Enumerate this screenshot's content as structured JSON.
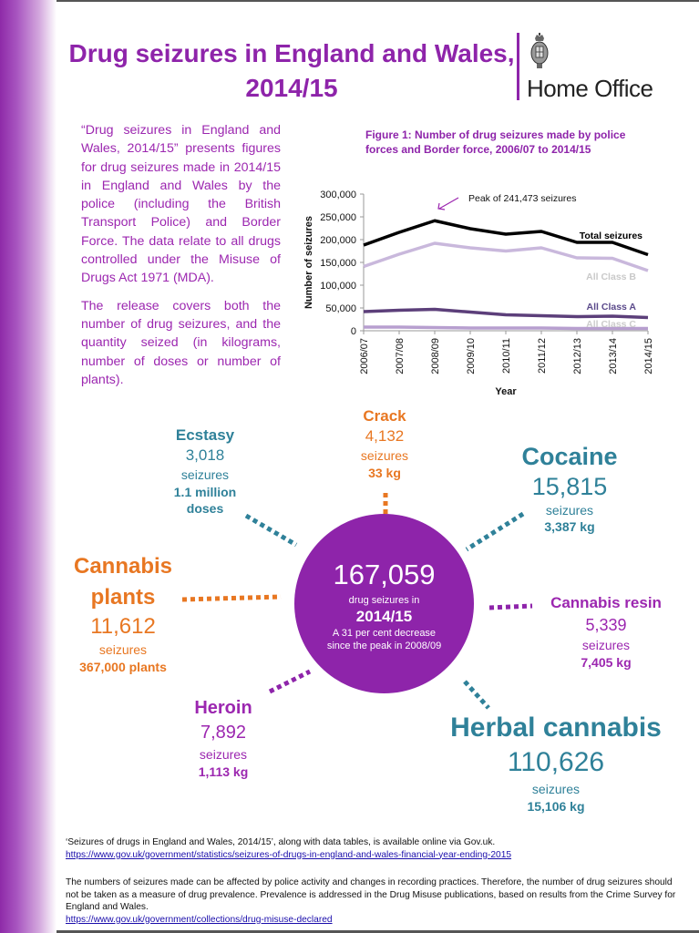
{
  "header": {
    "title_line1": "Drug seizures in England and Wales,",
    "title_line2": "2014/15",
    "logo_text": "Home Office",
    "logo_icon": "royal-crest-icon"
  },
  "intro": {
    "paragraph1": "“Drug seizures in England and Wales, 2014/15” presents figures for drug seizures made in 2014/15 in England and Wales by the police (including the British Transport Police) and Border Force. The data relate to all drugs controlled under the Misuse of Drugs Act 1971 (MDA).",
    "paragraph2": "The release covers both the number of drug seizures, and the quantity seized (in kilograms, number of doses or number of plants)."
  },
  "figure": {
    "title_line1": "Figure 1: Number of drug seizures made by police",
    "title_line2": "forces and Border force, 2006/07 to 2014/15",
    "annotation": "Peak of 241,473 seizures"
  },
  "chart_data": {
    "type": "line",
    "title": "Figure 1: Number of drug seizures made by police forces and Border force, 2006/07 to 2014/15",
    "xlabel": "Year",
    "ylabel": "Number of seizures",
    "ylim": [
      0,
      300000
    ],
    "yticks": [
      0,
      50000,
      100000,
      150000,
      200000,
      250000,
      300000
    ],
    "ytick_labels": [
      "0",
      "50,000",
      "100,000",
      "150,000",
      "200,000",
      "250,000",
      "300,000"
    ],
    "categories": [
      "2006/07",
      "2007/08",
      "2008/09",
      "2009/10",
      "2010/11",
      "2011/12",
      "2012/13",
      "2013/14",
      "2014/15"
    ],
    "series": [
      {
        "name": "Total seizures",
        "color": "#000000",
        "values": [
          188000,
          216000,
          241473,
          224000,
          212000,
          218000,
          194000,
          194000,
          167059
        ]
      },
      {
        "name": "All Class B",
        "color": "#c9b8dc",
        "values": [
          141000,
          168000,
          192000,
          182000,
          175000,
          182000,
          160000,
          159000,
          132000
        ]
      },
      {
        "name": "All Class A",
        "color": "#5c3f7a",
        "values": [
          42000,
          45000,
          47000,
          41000,
          35000,
          33000,
          31000,
          32000,
          29000
        ]
      },
      {
        "name": "All Class C",
        "color": "#b79fcf",
        "values": [
          8000,
          8000,
          7000,
          6000,
          6000,
          6000,
          5000,
          5000,
          5000
        ]
      }
    ],
    "annotations": [
      {
        "text": "Peak of 241,473 seizures",
        "x": "2008/09",
        "y": 241473
      }
    ],
    "grid": false,
    "legend_position": "inline-right"
  },
  "centre": {
    "number": "167,059",
    "label": "drug seizures in",
    "year": "2014/15",
    "note_line1": "A 31 per cent decrease",
    "note_line2": "since the peak in 2008/09"
  },
  "drugs": {
    "ecstasy": {
      "name": "Ecstasy",
      "seizures": "3,018",
      "label": "seizures",
      "qty_line1": "1.1 million",
      "qty_line2": "doses"
    },
    "crack": {
      "name": "Crack",
      "seizures": "4,132",
      "label": "seizures",
      "qty": "33 kg"
    },
    "cocaine": {
      "name": "Cocaine",
      "seizures": "15,815",
      "label": "seizures",
      "qty": "3,387 kg"
    },
    "cannabis_plants": {
      "name_line1": "Cannabis",
      "name_line2": "plants",
      "seizures": "11,612",
      "label": "seizures",
      "qty": "367,000 plants"
    },
    "cannabis_resin": {
      "name": "Cannabis resin",
      "seizures": "5,339",
      "label": "seizures",
      "qty": "7,405 kg"
    },
    "heroin": {
      "name": "Heroin",
      "seizures": "7,892",
      "label": "seizures",
      "qty": "1,113 kg"
    },
    "herbal_cannabis": {
      "name": "Herbal cannabis",
      "seizures": "110,626",
      "label": "seizures",
      "qty": "15,106 kg"
    }
  },
  "colors": {
    "purple": "#8e24aa",
    "teal": "#2f8199",
    "orange": "#e87722"
  },
  "footer": {
    "line1": "‘Seizures of drugs in England and Wales, 2014/15’, along with data tables, is available online via Gov.uk.",
    "link1": "https://www.gov.uk/government/statistics/seizures-of-drugs-in-england-and-wales-financial-year-ending-2015",
    "para2": "The numbers of seizures made can be affected by police activity and changes in recording practices. Therefore, the number of drug seizures should not be taken as a measure of drug prevalence. Prevalence is addressed in the Drug Misuse publications, based on results from the Crime Survey for England and Wales.",
    "link2": "https://www.gov.uk/government/collections/drug-misuse-declared"
  }
}
